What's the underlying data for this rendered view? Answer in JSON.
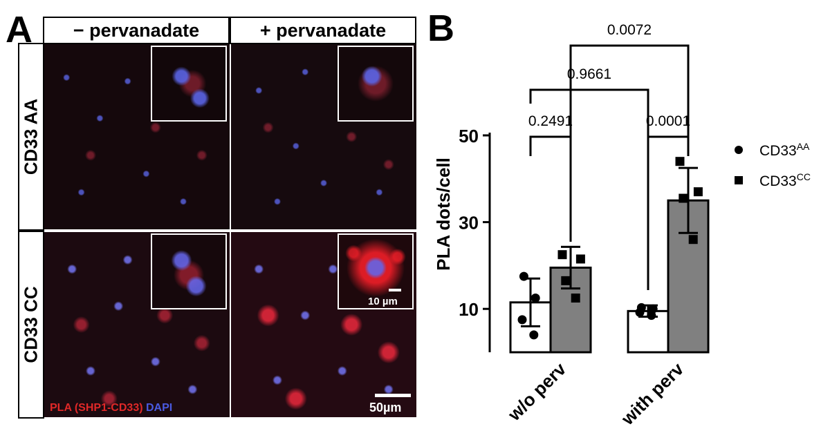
{
  "panel_a": {
    "letter": "A",
    "col_headers": [
      "− pervanadate",
      "+ pervanadate"
    ],
    "row_labels": [
      "CD33 AA",
      "CD33 CC"
    ],
    "inset_scale_label": "10 µm",
    "scale_bar_label": "50µm",
    "caption_pla": "PLA (SHP1-CD33)",
    "caption_dapi": "DAPI",
    "colors": {
      "pla": "#e02828",
      "dapi": "#4a5ae0"
    }
  },
  "panel_b": {
    "letter": "B",
    "legend": [
      {
        "marker": "circle",
        "base": "CD33",
        "sup": "AA"
      },
      {
        "marker": "square",
        "base": "CD33",
        "sup": "CC"
      }
    ]
  },
  "chart_data": {
    "type": "bar",
    "categories": [
      "w/o perv",
      "with perv"
    ],
    "ylabel": "PLA dots/cell",
    "ylim": [
      0,
      50
    ],
    "yticks": [
      10,
      30,
      50
    ],
    "bar_colors": {
      "CD33AA": "#ffffff",
      "CD33CC": "#808080"
    },
    "series": [
      {
        "name": "CD33AA",
        "marker": "circle",
        "values": [
          11.5,
          9.5
        ],
        "sd": [
          5.5,
          1.3
        ],
        "points": [
          [
            17.5,
            12.5,
            7.5,
            4.0
          ],
          [
            10.3,
            10.0,
            9.2,
            8.5
          ]
        ]
      },
      {
        "name": "CD33CC",
        "marker": "square",
        "values": [
          19.5,
          35.0
        ],
        "sd": [
          4.8,
          7.5
        ],
        "points": [
          [
            22.5,
            21.5,
            16.5,
            12.5
          ],
          [
            44.0,
            37.0,
            35.5,
            26.0
          ]
        ]
      }
    ],
    "comparisons": [
      {
        "label": "0.2491",
        "between": [
          "w/o perv CD33AA",
          "w/o perv CD33CC"
        ]
      },
      {
        "label": "0.0001",
        "between": [
          "with perv CD33AA",
          "with perv CD33CC"
        ]
      },
      {
        "label": "0.9661",
        "between": [
          "w/o perv CD33AA",
          "with perv CD33AA"
        ]
      },
      {
        "label": "0.0072",
        "between": [
          "w/o perv CD33CC",
          "with perv CD33CC"
        ]
      }
    ]
  }
}
